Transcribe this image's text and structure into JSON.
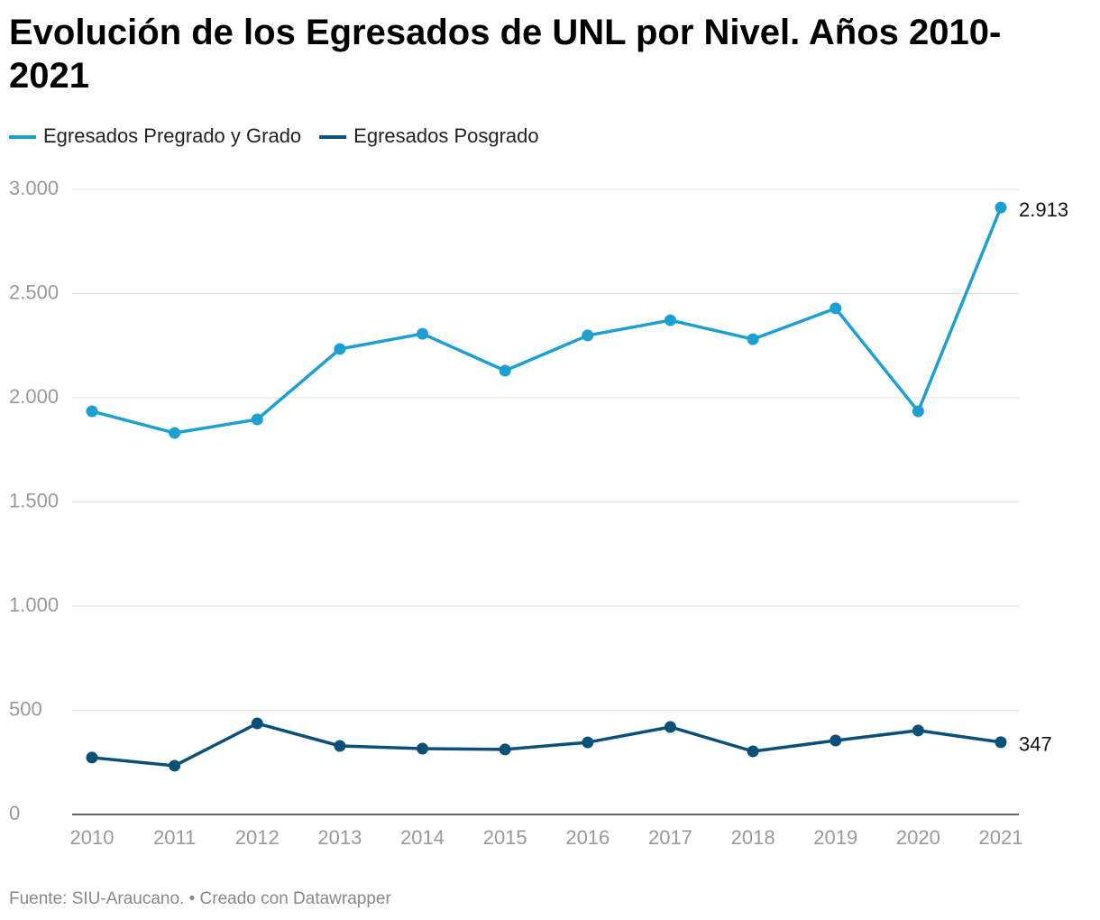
{
  "chart_data": {
    "type": "line",
    "title": "Evolución de los Egresados de UNL por Nivel. Años 2010-2021",
    "source": "Fuente: SIU-Araucano. • Creado con Datawrapper",
    "categories": [
      "2010",
      "2011",
      "2012",
      "2013",
      "2014",
      "2015",
      "2016",
      "2017",
      "2018",
      "2019",
      "2020",
      "2021"
    ],
    "series": [
      {
        "name": "Egresados Pregrado y Grado",
        "color": "#1d9fd1",
        "values": [
          1935,
          1831,
          1896,
          2234,
          2307,
          2130,
          2299,
          2372,
          2281,
          2429,
          1935,
          2913
        ],
        "value_labels": [
          null,
          null,
          null,
          null,
          null,
          null,
          null,
          null,
          null,
          null,
          null,
          "2.913"
        ]
      },
      {
        "name": "Egresados Posgrado",
        "color": "#0b5077",
        "values": [
          273,
          234,
          437,
          329,
          316,
          312,
          346,
          420,
          303,
          355,
          403,
          347
        ]
      }
    ],
    "ylim": [
      0,
      3000
    ],
    "yticks": [
      0,
      500,
      {
        "value": 1000,
        "label": "1.000"
      },
      {
        "value": 1500,
        "label": "1.500"
      },
      {
        "value": 2000,
        "label": "2.000"
      },
      {
        "value": 2500,
        "label": "2.500"
      },
      {
        "value": 3000,
        "label": "3.000"
      }
    ],
    "grid": true
  }
}
